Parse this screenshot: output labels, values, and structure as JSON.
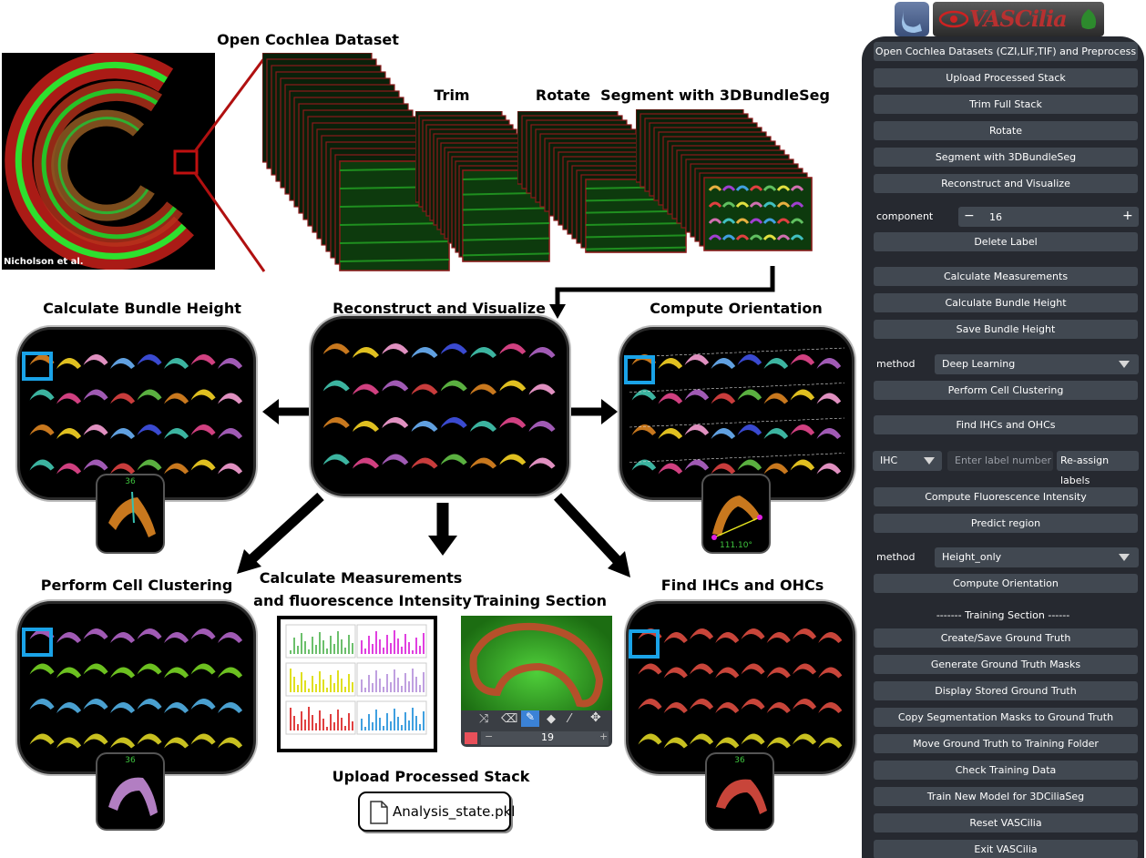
{
  "labels": {
    "open_dataset": "Open Cochlea Dataset",
    "trim": "Trim",
    "rotate": "Rotate",
    "segment": "Segment with 3DBundleSeg",
    "calc_height": "Calculate Bundle Height",
    "reconstruct": "Reconstruct and Visualize",
    "orientation": "Compute Orientation",
    "clustering": "Perform Cell Clustering",
    "measure_line1": "Calculate Measurements",
    "measure_line2": "and fluorescence Intensity",
    "training": "Training Section",
    "find_ihc": "Find IHCs and OHCs",
    "upload": "Upload Processed Stack",
    "credit": "Nicholson et al.",
    "file_name": "Analysis_state.pkl",
    "inset_num": "36",
    "angle": "111.10°",
    "brush_size": "19"
  },
  "app": {
    "title": "VASCilia",
    "buttons": [
      "Open Cochlea Datasets (CZI,LIF,TIF) and Preprocess",
      "Upload Processed Stack",
      "Trim Full Stack",
      "Rotate",
      "Segment with 3DBundleSeg",
      "Reconstruct and Visualize",
      "Delete Label",
      "Calculate Measurements",
      "Calculate Bundle Height",
      "Save Bundle Height",
      "Perform Cell Clustering",
      "Find IHCs and OHCs",
      "Re-assign labels",
      "Compute Fluorescence Intensity",
      "Predict region",
      "Compute Orientation",
      "Create/Save Ground Truth",
      "Generate Ground Truth Masks",
      "Display Stored Ground Truth",
      "Copy Segmentation Masks to Ground Truth",
      "Move Ground Truth to Training Folder",
      "Check Training Data",
      "Train New Model for 3DCiliaSeg",
      "Reset VASCilia",
      "Exit VASCilia"
    ],
    "component_label": "component",
    "component_value": "16",
    "minus": "−",
    "plus": "+",
    "method_label": "method",
    "method1_value": "Deep Learning",
    "method2_value": "Height_only",
    "cell_type_value": "IHC",
    "label_placeholder": "Enter label number",
    "training_header": "------- Training Section ------"
  },
  "colors": {
    "gui_bg": "#262930",
    "button_bg": "#414851",
    "highlight": "#1aa3e8",
    "zoom_line": "#b01010",
    "stack_border": "#8b1a1a",
    "green": "#22cc22"
  }
}
